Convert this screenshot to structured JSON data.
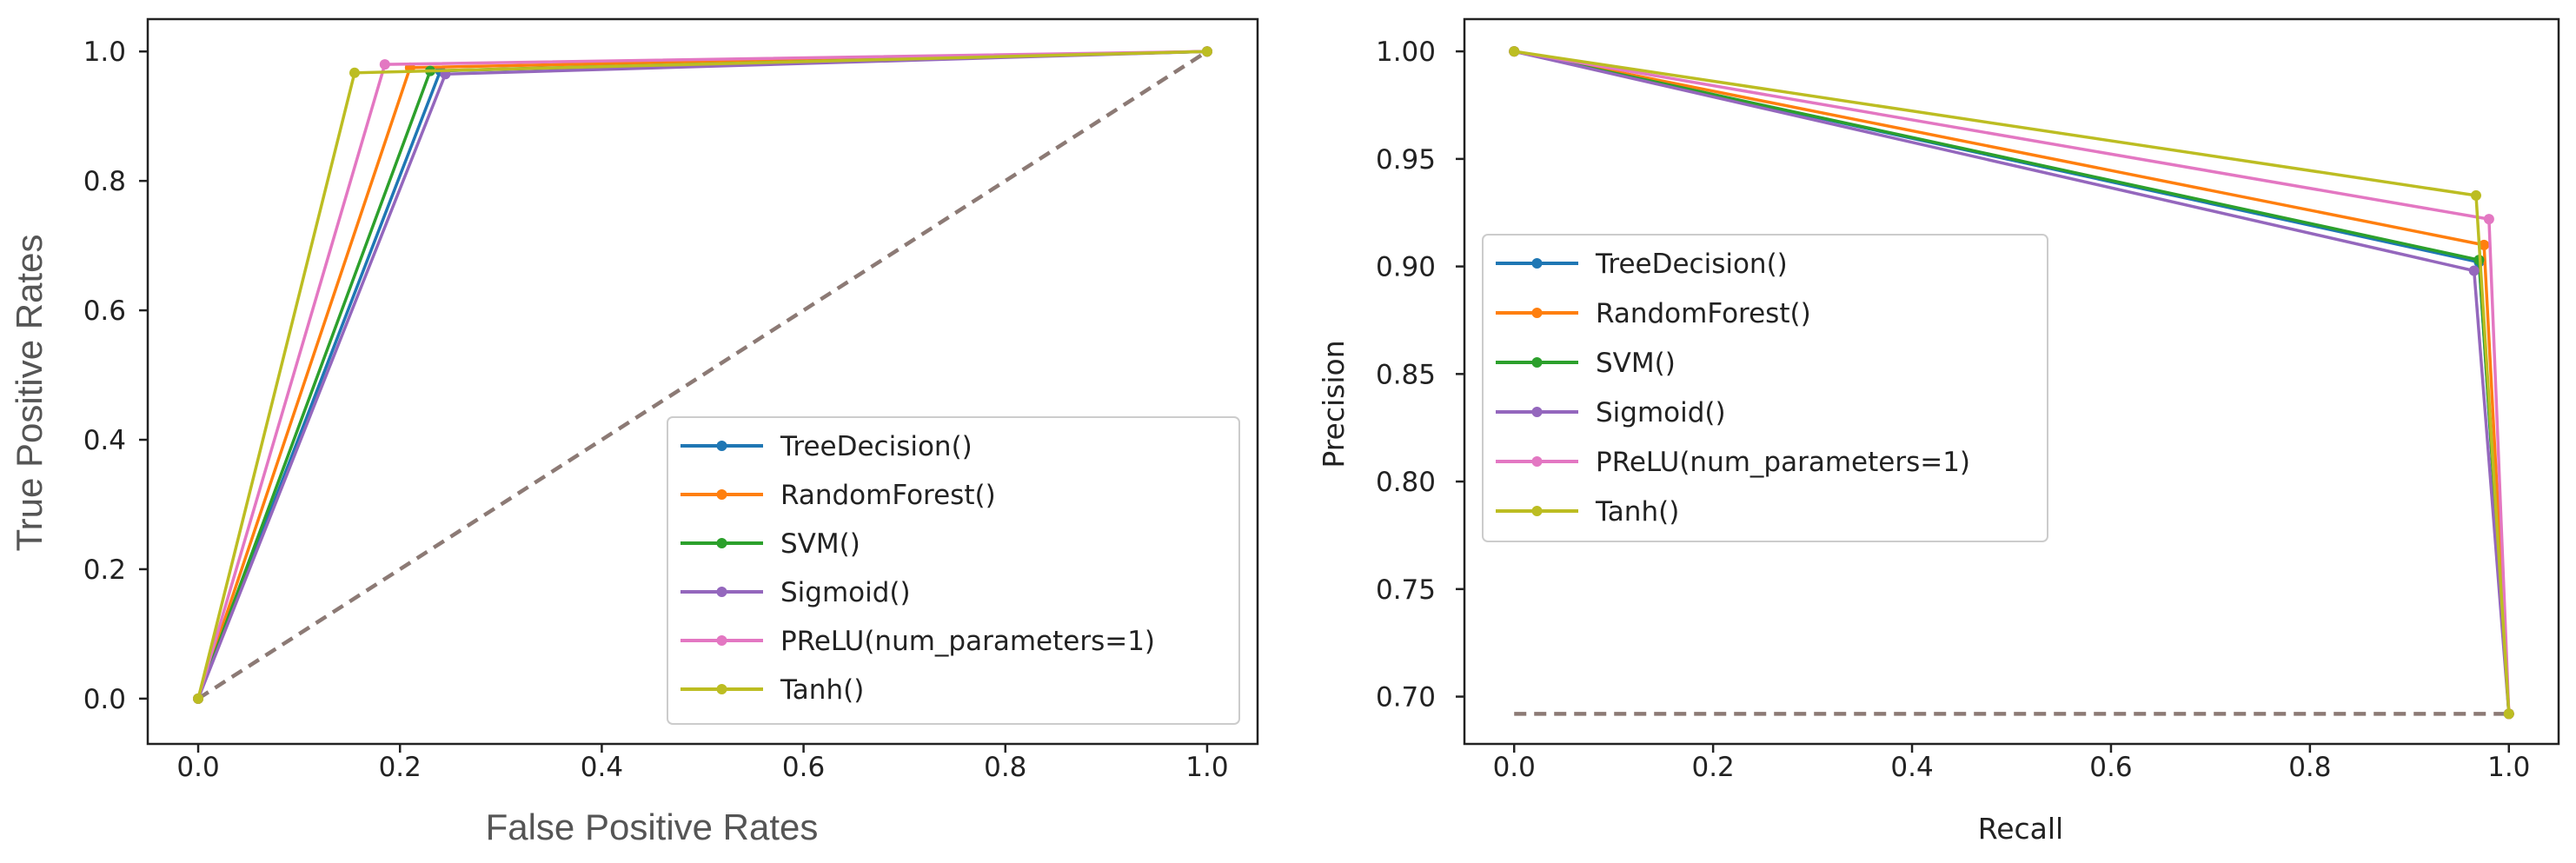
{
  "chart_data": [
    {
      "type": "line",
      "title": "",
      "xlabel": "False Positive Rates",
      "ylabel": "True Positive Rates",
      "xlim": [
        -0.05,
        1.05
      ],
      "ylim": [
        -0.07,
        1.05
      ],
      "xticks": [
        0.0,
        0.2,
        0.4,
        0.6,
        0.8,
        1.0
      ],
      "yticks": [
        0.0,
        0.2,
        0.4,
        0.6,
        0.8,
        1.0
      ],
      "xtick_labels": [
        "0.0",
        "0.2",
        "0.4",
        "0.6",
        "0.8",
        "1.0"
      ],
      "ytick_labels": [
        "0.0",
        "0.2",
        "0.4",
        "0.6",
        "0.8",
        "1.0"
      ],
      "legend_position": "lower-right",
      "series": [
        {
          "name": "TreeDecision()",
          "color": "#1f77b4",
          "x": [
            0,
            0.24,
            1
          ],
          "y": [
            0,
            0.97,
            1
          ]
        },
        {
          "name": "RandomForest()",
          "color": "#ff7f0e",
          "x": [
            0,
            0.21,
            1
          ],
          "y": [
            0,
            0.975,
            1
          ]
        },
        {
          "name": "SVM()",
          "color": "#2ca02c",
          "x": [
            0,
            0.23,
            1
          ],
          "y": [
            0,
            0.97,
            1
          ]
        },
        {
          "name": "Sigmoid()",
          "color": "#9467bd",
          "x": [
            0,
            0.245,
            1
          ],
          "y": [
            0,
            0.965,
            1
          ]
        },
        {
          "name": "PReLU(num_parameters=1)",
          "color": "#e377c2",
          "x": [
            0,
            0.185,
            1
          ],
          "y": [
            0,
            0.98,
            1
          ]
        },
        {
          "name": "Tanh()",
          "color": "#bcbd22",
          "x": [
            0,
            0.155,
            1
          ],
          "y": [
            0,
            0.967,
            1
          ]
        }
      ],
      "baseline": {
        "color": "#8c7a75",
        "x": [
          0,
          1
        ],
        "y": [
          0,
          1
        ]
      }
    },
    {
      "type": "line",
      "title": "",
      "xlabel": "Recall",
      "ylabel": "Precision",
      "xlim": [
        -0.05,
        1.05
      ],
      "ylim": [
        0.678,
        1.015
      ],
      "xticks": [
        0.0,
        0.2,
        0.4,
        0.6,
        0.8,
        1.0
      ],
      "yticks": [
        0.7,
        0.75,
        0.8,
        0.85,
        0.9,
        0.95,
        1.0
      ],
      "xtick_labels": [
        "0.0",
        "0.2",
        "0.4",
        "0.6",
        "0.8",
        "1.0"
      ],
      "ytick_labels": [
        "0.70",
        "0.75",
        "0.80",
        "0.85",
        "0.90",
        "0.95",
        "1.00"
      ],
      "legend_position": "center-left",
      "series": [
        {
          "name": "TreeDecision()",
          "color": "#1f77b4",
          "x": [
            0,
            0.97,
            1
          ],
          "y": [
            1.0,
            0.902,
            0.692
          ]
        },
        {
          "name": "RandomForest()",
          "color": "#ff7f0e",
          "x": [
            0,
            0.975,
            1
          ],
          "y": [
            1.0,
            0.91,
            0.692
          ]
        },
        {
          "name": "SVM()",
          "color": "#2ca02c",
          "x": [
            0,
            0.97,
            1
          ],
          "y": [
            1.0,
            0.903,
            0.692
          ]
        },
        {
          "name": "Sigmoid()",
          "color": "#9467bd",
          "x": [
            0,
            0.965,
            1
          ],
          "y": [
            1.0,
            0.898,
            0.692
          ]
        },
        {
          "name": "PReLU(num_parameters=1)",
          "color": "#e377c2",
          "x": [
            0,
            0.98,
            1
          ],
          "y": [
            1.0,
            0.922,
            0.692
          ]
        },
        {
          "name": "Tanh()",
          "color": "#bcbd22",
          "x": [
            0,
            0.967,
            1
          ],
          "y": [
            1.0,
            0.933,
            0.692
          ]
        }
      ],
      "baseline": {
        "color": "#8c7a75",
        "x": [
          0,
          1
        ],
        "y": [
          0.692,
          0.692
        ]
      }
    }
  ]
}
